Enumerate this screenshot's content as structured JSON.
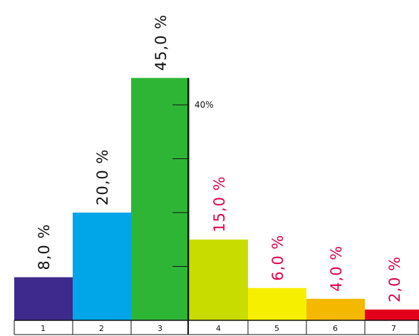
{
  "chart_data": {
    "type": "bar",
    "title": "",
    "xlabel": "",
    "ylabel": "",
    "categories": [
      "1",
      "2",
      "3",
      "4",
      "5",
      "6",
      "7"
    ],
    "values": [
      8.0,
      20.0,
      45.0,
      15.0,
      6.0,
      4.0,
      2.0
    ],
    "value_labels": [
      "8,0 %",
      "20,0 %",
      "45,0 %",
      "15,0 %",
      "6,0 %",
      "4,0 %",
      "2,0 %"
    ],
    "bar_colors": [
      "#3d2a8c",
      "#00a6e8",
      "#2fb536",
      "#c8dc00",
      "#f7ef00",
      "#f5b800",
      "#e2001a"
    ],
    "label_colors": [
      "#111111",
      "#111111",
      "#111111",
      "#e2004a",
      "#e2004a",
      "#e2004a",
      "#e2004a"
    ],
    "ylim": [
      0,
      45
    ],
    "y_ticks": [
      10,
      20,
      30,
      40
    ],
    "y_tick_labels": [
      "",
      "",
      "",
      "40%"
    ],
    "grid": false,
    "legend": "none"
  }
}
